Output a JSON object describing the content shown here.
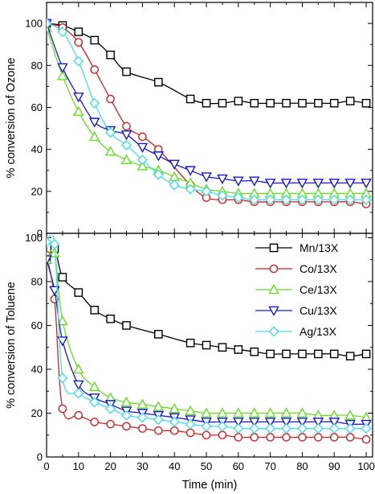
{
  "chart_data": [
    {
      "type": "line",
      "ylabel": "% conversion of Ozone",
      "xlim": [
        0,
        102
      ],
      "ylim": [
        0,
        110
      ],
      "xticks": [
        0,
        10,
        20,
        30,
        40,
        50,
        60,
        70,
        80,
        90,
        100
      ],
      "yticks": [
        0,
        20,
        40,
        60,
        80,
        100
      ],
      "grid": false,
      "series": [
        {
          "name": "Mn/13X",
          "color": "#000000",
          "marker": "square",
          "x": [
            0,
            5,
            10,
            15,
            20,
            25,
            35,
            45,
            50,
            55,
            60,
            65,
            70,
            75,
            80,
            85,
            90,
            95,
            100
          ],
          "y": [
            100,
            99,
            96,
            92,
            85,
            77,
            72,
            64,
            62,
            62,
            63,
            62,
            62,
            62,
            62,
            62,
            62,
            63,
            62
          ]
        },
        {
          "name": "Co/13X",
          "color": "#cc2222",
          "marker": "circle",
          "x": [
            0,
            5,
            10,
            15,
            20,
            25,
            30,
            35,
            45,
            50,
            55,
            60,
            65,
            70,
            75,
            80,
            85,
            90,
            95,
            100
          ],
          "y": [
            100,
            98,
            91,
            78,
            64,
            51,
            46,
            40,
            23,
            17,
            16,
            16,
            15,
            15,
            15,
            15,
            15,
            15,
            15,
            14
          ]
        },
        {
          "name": "Ce/13X",
          "color": "#66dd22",
          "marker": "triangle-up",
          "x": [
            0,
            5,
            10,
            15,
            20,
            25,
            30,
            35,
            40,
            45,
            50,
            55,
            60,
            65,
            70,
            75,
            80,
            85,
            90,
            95,
            100
          ],
          "y": [
            98,
            75,
            58,
            46,
            39,
            35,
            32,
            30,
            27,
            24,
            21,
            20,
            19,
            19,
            19,
            19,
            19,
            19,
            19,
            19,
            19
          ]
        },
        {
          "name": "Cu/13X",
          "color": "#1a1acc",
          "marker": "triangle-down",
          "x": [
            0,
            5,
            10,
            15,
            20,
            25,
            30,
            35,
            40,
            45,
            50,
            55,
            60,
            65,
            70,
            75,
            80,
            85,
            90,
            95,
            100
          ],
          "y": [
            100,
            79,
            65,
            53,
            49,
            47,
            41,
            37,
            33,
            30,
            27,
            26,
            25,
            25,
            24,
            24,
            24,
            24,
            24,
            24,
            24
          ]
        },
        {
          "name": "Ag/13X",
          "color": "#44ddee",
          "marker": "diamond",
          "x": [
            0,
            5,
            10,
            15,
            20,
            25,
            30,
            35,
            40,
            45,
            50,
            55,
            60,
            65,
            70,
            75,
            80,
            85,
            90,
            95,
            100
          ],
          "y": [
            100,
            96,
            82,
            62,
            48,
            42,
            35,
            28,
            23,
            21,
            20,
            18,
            17,
            16,
            16,
            16,
            16,
            16,
            16,
            16,
            16
          ]
        }
      ]
    },
    {
      "type": "line",
      "xlabel": "Time (min)",
      "ylabel": "% conversion of Toluene",
      "xlim": [
        0,
        102
      ],
      "ylim": [
        0,
        102
      ],
      "xticks": [
        0,
        10,
        20,
        30,
        40,
        50,
        60,
        70,
        80,
        90,
        100
      ],
      "yticks": [
        0,
        20,
        40,
        60,
        80,
        100
      ],
      "grid": false,
      "legend": "top-right",
      "series": [
        {
          "name": "Mn/13X",
          "color": "#000000",
          "marker": "square",
          "x": [
            0,
            2.5,
            5,
            10,
            15,
            20,
            25,
            35,
            45,
            50,
            55,
            60,
            65,
            70,
            75,
            80,
            85,
            90,
            95,
            100
          ],
          "y": [
            90,
            95,
            82,
            75,
            67,
            63,
            60,
            56,
            52,
            51,
            50,
            49,
            48,
            47,
            47,
            47,
            47,
            47,
            46,
            47
          ]
        },
        {
          "name": "Co/13X",
          "color": "#cc2222",
          "marker": "circle",
          "x": [
            0,
            2.5,
            5,
            10,
            15,
            20,
            25,
            30,
            35,
            40,
            45,
            50,
            55,
            60,
            65,
            70,
            75,
            80,
            85,
            90,
            95,
            100
          ],
          "y": [
            92,
            72,
            22,
            19,
            16,
            15,
            14,
            13,
            12,
            12,
            11,
            10,
            10,
            9,
            9,
            9,
            9,
            9,
            9,
            9,
            9,
            8
          ]
        },
        {
          "name": "Ce/13X",
          "color": "#66dd22",
          "marker": "triangle-up",
          "x": [
            0,
            2.5,
            5,
            10,
            15,
            20,
            25,
            30,
            35,
            40,
            45,
            50,
            55,
            60,
            65,
            70,
            75,
            80,
            85,
            90,
            95,
            100
          ],
          "y": [
            90,
            93,
            62,
            40,
            32,
            27,
            25,
            24,
            23,
            22,
            21,
            20,
            20,
            20,
            20,
            20,
            20,
            20,
            19,
            19,
            19,
            18
          ]
        },
        {
          "name": "Cu/13X",
          "color": "#1a1acc",
          "marker": "triangle-down",
          "x": [
            0,
            2.5,
            5,
            10,
            15,
            20,
            25,
            30,
            35,
            40,
            45,
            50,
            55,
            60,
            65,
            70,
            75,
            80,
            85,
            90,
            95,
            100
          ],
          "y": [
            90,
            76,
            53,
            33,
            27,
            24,
            21,
            20,
            19,
            18,
            17,
            16,
            16,
            16,
            16,
            16,
            16,
            16,
            16,
            16,
            15,
            15
          ]
        },
        {
          "name": "Ag/13X",
          "color": "#44ddee",
          "marker": "diamond",
          "x": [
            0,
            2.5,
            5,
            10,
            15,
            20,
            25,
            30,
            35,
            40,
            45,
            50,
            55,
            60,
            65,
            70,
            75,
            80,
            85,
            90,
            95,
            100
          ],
          "y": [
            98,
            97,
            36,
            29,
            25,
            22,
            19,
            18,
            17,
            16,
            15,
            14,
            14,
            13,
            13,
            13,
            13,
            13,
            13,
            13,
            13,
            13
          ]
        }
      ]
    }
  ]
}
